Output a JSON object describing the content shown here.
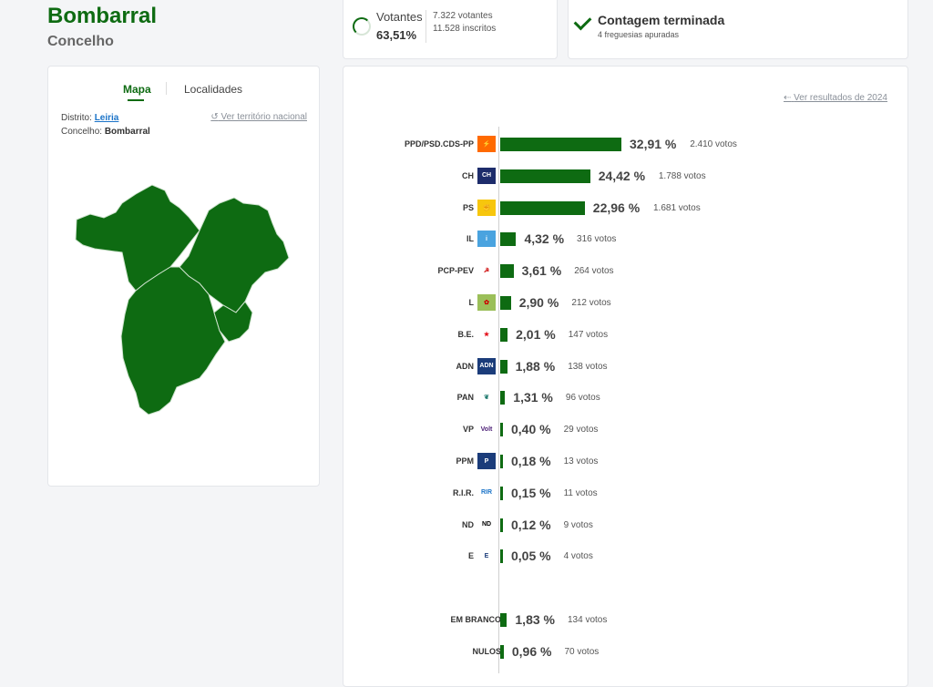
{
  "header": {
    "title": "Bombarral",
    "subtitle": "Concelho"
  },
  "turnout": {
    "label": "Votantes",
    "pct": "63,51%",
    "voters": "7.322 votantes",
    "registered": "11.528 inscritos"
  },
  "status": {
    "title": "Contagem terminada",
    "subtitle": "4 freguesias apuradas"
  },
  "map_panel": {
    "tabs": [
      "Mapa",
      "Localidades"
    ],
    "distrito_label": "Distrito:",
    "distrito_value": "Leiria",
    "concelho_label": "Concelho:",
    "concelho_value": "Bombarral",
    "national_link": "Ver território nacional",
    "region_color": "#0e6b12"
  },
  "results": {
    "prev_link": "Ver resultados de 2024",
    "bar_color": "#0e6b12",
    "parties": [
      {
        "name": "PPD/PSD.CDS-PP",
        "pct": "32,91 %",
        "votes": "2.410 votos",
        "value": 32.91,
        "icon": "psd-cds-logo"
      },
      {
        "name": "CH",
        "pct": "24,42 %",
        "votes": "1.788 votos",
        "value": 24.42,
        "icon": "chega-logo"
      },
      {
        "name": "PS",
        "pct": "22,96 %",
        "votes": "1.681 votos",
        "value": 22.96,
        "icon": "ps-logo"
      },
      {
        "name": "IL",
        "pct": "4,32 %",
        "votes": "316 votos",
        "value": 4.32,
        "icon": "il-logo"
      },
      {
        "name": "PCP-PEV",
        "pct": "3,61 %",
        "votes": "264 votos",
        "value": 3.61,
        "icon": "pcp-pev-logo"
      },
      {
        "name": "L",
        "pct": "2,90 %",
        "votes": "212 votos",
        "value": 2.9,
        "icon": "livre-logo"
      },
      {
        "name": "B.E.",
        "pct": "2,01 %",
        "votes": "147 votos",
        "value": 2.01,
        "icon": "be-logo"
      },
      {
        "name": "ADN",
        "pct": "1,88 %",
        "votes": "138 votos",
        "value": 1.88,
        "icon": "adn-logo"
      },
      {
        "name": "PAN",
        "pct": "1,31 %",
        "votes": "96 votos",
        "value": 1.31,
        "icon": "pan-logo"
      },
      {
        "name": "VP",
        "pct": "0,40 %",
        "votes": "29 votos",
        "value": 0.4,
        "icon": "volt-logo"
      },
      {
        "name": "PPM",
        "pct": "0,18 %",
        "votes": "13 votos",
        "value": 0.18,
        "icon": "ppm-logo"
      },
      {
        "name": "R.I.R.",
        "pct": "0,15 %",
        "votes": "11 votos",
        "value": 0.15,
        "icon": "rir-logo"
      },
      {
        "name": "ND",
        "pct": "0,12 %",
        "votes": "9 votos",
        "value": 0.12,
        "icon": "nd-logo"
      },
      {
        "name": "E",
        "pct": "0,05 %",
        "votes": "4 votos",
        "value": 0.05,
        "icon": "ergue-te-logo"
      }
    ],
    "others": [
      {
        "name": "EM BRANCO",
        "pct": "1,83 %",
        "votes": "134 votos",
        "value": 1.83
      },
      {
        "name": "NULOS",
        "pct": "0,96 %",
        "votes": "70 votos",
        "value": 0.96
      }
    ]
  }
}
